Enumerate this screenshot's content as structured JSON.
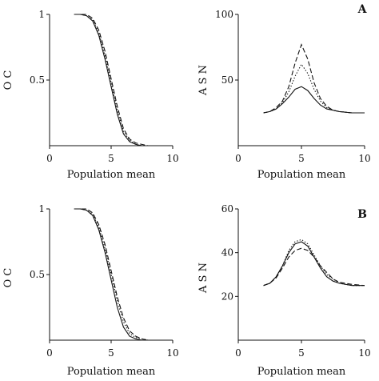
{
  "chart_data": [
    {
      "id": "oc-a",
      "type": "line",
      "xlabel": "Population mean",
      "ylabel": "O C",
      "xlim": [
        0,
        10
      ],
      "ylim": [
        0,
        1
      ],
      "xticks": [
        "0",
        "5",
        "10"
      ],
      "yticks": [
        "0.5",
        "1"
      ],
      "ytick_values": [
        0.5,
        1
      ],
      "x": [
        2,
        2.5,
        3,
        3.5,
        4,
        4.5,
        5,
        5.5,
        6,
        6.5,
        7,
        7.5,
        8,
        9,
        10
      ],
      "series": [
        {
          "style": "solid",
          "values": [
            1,
            1,
            0.99,
            0.95,
            0.84,
            0.66,
            0.45,
            0.24,
            0.09,
            0.03,
            0.01,
            0,
            0,
            0,
            0
          ]
        },
        {
          "style": "dotted",
          "values": [
            1,
            1,
            0.99,
            0.96,
            0.86,
            0.69,
            0.48,
            0.27,
            0.11,
            0.04,
            0.01,
            0,
            0,
            0,
            0
          ]
        },
        {
          "style": "dashed",
          "values": [
            1,
            1,
            1,
            0.97,
            0.88,
            0.72,
            0.51,
            0.3,
            0.13,
            0.05,
            0.02,
            0.01,
            0,
            0,
            0
          ]
        }
      ]
    },
    {
      "id": "asn-a",
      "type": "line",
      "panel_label": "A",
      "xlabel": "Population mean",
      "ylabel": "A S N",
      "xlim": [
        0,
        10
      ],
      "ylim": [
        0,
        100
      ],
      "xticks": [
        "0",
        "5",
        "10"
      ],
      "yticks": [
        "50",
        "100"
      ],
      "ytick_values": [
        50,
        100
      ],
      "x": [
        2,
        2.5,
        3,
        3.5,
        4,
        4.5,
        5,
        5.5,
        6,
        6.5,
        7,
        7.5,
        8,
        9,
        10
      ],
      "series": [
        {
          "style": "solid",
          "values": [
            25,
            26,
            28,
            32,
            37,
            43,
            45,
            42,
            36,
            31,
            28,
            27,
            26,
            25,
            25
          ]
        },
        {
          "style": "dotted",
          "values": [
            25,
            26,
            28,
            33,
            41,
            53,
            62,
            55,
            43,
            34,
            29,
            27,
            26,
            25,
            25
          ]
        },
        {
          "style": "dashed",
          "values": [
            25,
            26,
            29,
            34,
            45,
            63,
            77,
            66,
            48,
            36,
            30,
            27,
            26,
            25,
            25
          ]
        }
      ]
    },
    {
      "id": "oc-b",
      "type": "line",
      "xlabel": "Population mean",
      "ylabel": "O C",
      "xlim": [
        0,
        10
      ],
      "ylim": [
        0,
        1
      ],
      "xticks": [
        "0",
        "5",
        "10"
      ],
      "yticks": [
        "0.5",
        "1"
      ],
      "ytick_values": [
        0.5,
        1
      ],
      "x": [
        2,
        2.5,
        3,
        3.5,
        4,
        4.5,
        5,
        5.5,
        6,
        6.5,
        7,
        7.5,
        8,
        9,
        10
      ],
      "series": [
        {
          "style": "solid",
          "values": [
            1,
            1,
            0.99,
            0.95,
            0.84,
            0.67,
            0.46,
            0.25,
            0.1,
            0.03,
            0.01,
            0,
            0,
            0,
            0
          ]
        },
        {
          "style": "dotted",
          "values": [
            1,
            1,
            0.99,
            0.96,
            0.86,
            0.7,
            0.5,
            0.3,
            0.14,
            0.05,
            0.02,
            0.01,
            0,
            0,
            0
          ]
        },
        {
          "style": "dashed",
          "values": [
            1,
            1,
            1,
            0.97,
            0.88,
            0.73,
            0.53,
            0.33,
            0.17,
            0.07,
            0.03,
            0.01,
            0,
            0,
            0
          ]
        }
      ]
    },
    {
      "id": "asn-b",
      "type": "line",
      "panel_label": "B",
      "xlabel": "Population mean",
      "ylabel": "A S N",
      "xlim": [
        0,
        10
      ],
      "ylim": [
        0,
        60
      ],
      "xticks": [
        "0",
        "5",
        "10"
      ],
      "yticks": [
        "20",
        "40",
        "60"
      ],
      "ytick_values": [
        20,
        40,
        60
      ],
      "x": [
        2,
        2.5,
        3,
        3.5,
        4,
        4.5,
        5,
        5.5,
        6,
        6.5,
        7,
        7.5,
        8,
        9,
        10
      ],
      "series": [
        {
          "style": "solid",
          "values": [
            25,
            26,
            29,
            34,
            40,
            44,
            45,
            43,
            38,
            33,
            29,
            27,
            26,
            25,
            25
          ]
        },
        {
          "style": "dotted",
          "values": [
            25,
            26,
            29,
            34,
            41,
            45,
            46,
            44,
            39,
            34,
            30,
            28,
            26,
            25,
            25
          ]
        },
        {
          "style": "dashed",
          "values": [
            25,
            26,
            28.5,
            33,
            38,
            41,
            42,
            41,
            38,
            34,
            31,
            28,
            26.5,
            25.5,
            25
          ]
        }
      ]
    }
  ]
}
